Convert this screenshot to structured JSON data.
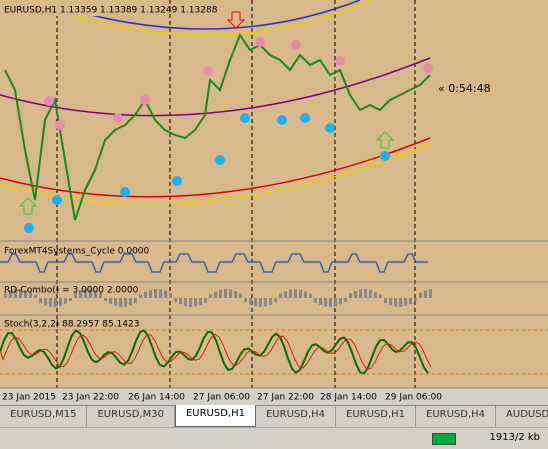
{
  "header": {
    "symbol_line": "EURUSD,H1  1.13359 1.13389 1.13249 1.13288",
    "countdown": "« 0:54:48"
  },
  "indicators": [
    "ForexMT4Systems_Cycle 0.0000",
    "RD-Combo() =  3.0000 2.0000",
    "Stoch(3,2,2) 88.2957 85.1423"
  ],
  "time_axis": [
    "23 Jan 2015",
    "23 Jan 22:00",
    "26 Jan 14:00",
    "27 Jan 06:00",
    "27 Jan 22:00",
    "28 Jan 14:00",
    "29 Jan 06:00"
  ],
  "tabs": [
    "EURUSD,M15",
    "EURUSD,M30",
    "EURUSD,H1",
    "EURUSD,H4",
    "EURUSD,H1",
    "EURUSD,H4",
    "AUDUSD"
  ],
  "status": {
    "memory": "1913/2 kb"
  }
}
